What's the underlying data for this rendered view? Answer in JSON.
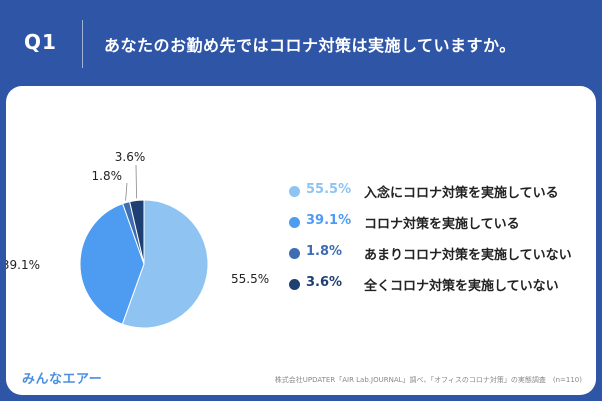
{
  "header": {
    "q_label": "Q1",
    "question": "あなたのお勤め先ではコロナ対策は実施していますか。"
  },
  "colors": {
    "background": "#2f56a6",
    "card": "#ffffff",
    "slices": [
      "#8ec3f2",
      "#4d9cf1",
      "#3e6db3",
      "#1e3f72"
    ]
  },
  "chart_data": {
    "type": "pie",
    "labels": [
      "入念にコロナ対策を実施している",
      "コロナ対策を実施している",
      "あまりコロナ対策を実施していない",
      "全くコロナ対策を実施していない"
    ],
    "values": [
      55.5,
      39.1,
      1.8,
      3.6
    ],
    "value_labels": [
      "55.5%",
      "39.1%",
      "1.8%",
      "3.6%"
    ],
    "legend_position": "right"
  },
  "footer": {
    "logo": "みんなエアー",
    "source": "株式会社UPDATER「AIR Lab.JOURNAL」調べ、「オフィスのコロナ対策」の実態調査　(n=110)"
  }
}
